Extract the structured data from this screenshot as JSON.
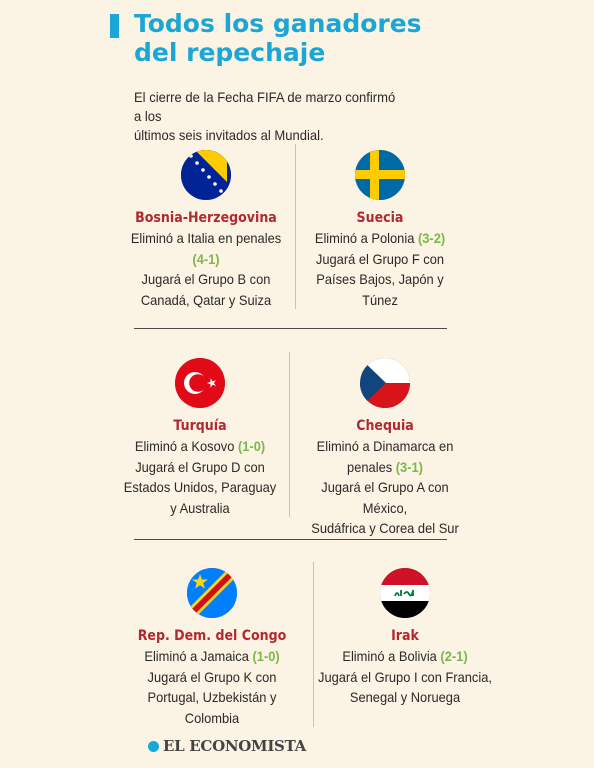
{
  "header": {
    "title_line1": "Todos los ganadores",
    "title_line2": "del repechaje",
    "intro_line1": "El cierre de la Fecha FIFA de marzo confirmó a los",
    "intro_line2": "últimos seis invitados al Mundial."
  },
  "teams": [
    {
      "name": "Bosnia-Herzegovina",
      "l1": "Eliminó a Italia en penales",
      "s1": "(4-1)",
      "l2": "Jugará el Grupo B con",
      "l3": "Canadá, Qatar y Suiza",
      "flag_icon": "bosnia-flag-icon"
    },
    {
      "name": "Suecia",
      "l1a": "Eliminó a Polonia ",
      "s1": "(3-2)",
      "l2": "Jugará el Grupo F con",
      "l3": "Países Bajos, Japón y",
      "l4": "Túnez",
      "flag_icon": "sweden-flag-icon"
    },
    {
      "name": "Turquía",
      "l1a": "Eliminó a Kosovo ",
      "s1": "(1-0)",
      "l2": "Jugará el Grupo D con",
      "l3": "Estados Unidos, Paraguay",
      "l4": "y Australia",
      "flag_icon": "turkey-flag-icon"
    },
    {
      "name": "Chequia",
      "l1": "Eliminó a Dinamarca en",
      "l2a": "penales ",
      "s1": "(3-1)",
      "l3": "Jugará el Grupo A con México,",
      "l4": "Sudáfrica y Corea del Sur",
      "flag_icon": "czechia-flag-icon"
    },
    {
      "name": "Rep. Dem. del Congo",
      "l1a": "Eliminó a Jamaica ",
      "s1": "(1-0)",
      "l2": "Jugará el Grupo K con",
      "l3": "Portugal, Uzbekistán y",
      "l4": "Colombia",
      "flag_icon": "dr-congo-flag-icon"
    },
    {
      "name": "Irak",
      "l1a": "Eliminó a Bolivia ",
      "s1": "(2-1)",
      "l2": "Jugará el Grupo I con Francia,",
      "l3": "Senegal y Noruega",
      "flag_icon": "iraq-flag-icon"
    }
  ],
  "footer": {
    "brand": "EL ECONOMISTA"
  },
  "colors": {
    "accent": "#1aa7d6",
    "country": "#b2282f",
    "score": "#7bb84a",
    "background": "#fbf3e3"
  }
}
